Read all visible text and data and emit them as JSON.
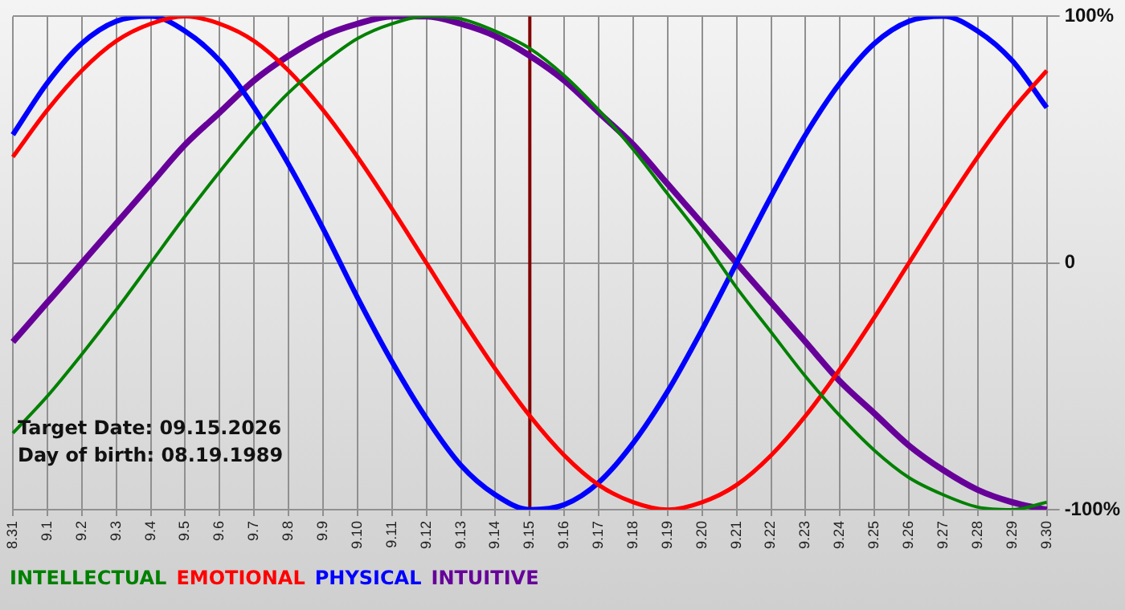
{
  "chart_data": {
    "type": "line",
    "categories": [
      "8.31",
      "9.1",
      "9.2",
      "9.3",
      "9.4",
      "9.5",
      "9.6",
      "9.7",
      "9.8",
      "9.9",
      "9.10",
      "9.11",
      "9.12",
      "9.13",
      "9.14",
      "9.15",
      "9.16",
      "9.17",
      "9.18",
      "9.19",
      "9.20",
      "9.21",
      "9.22",
      "9.23",
      "9.24",
      "9.25",
      "9.26",
      "9.27",
      "9.28",
      "9.29",
      "9.30"
    ],
    "series": [
      {
        "name": "INTELLECTUAL",
        "color": "#008000",
        "values": [
          -69,
          -54,
          -37,
          -19,
          0,
          19,
          37,
          54,
          69,
          81,
          91,
          97,
          100,
          99,
          94,
          87,
          76,
          62,
          46,
          28,
          10,
          -10,
          -28,
          -46,
          -62,
          -76,
          -87,
          -94,
          -99,
          -100,
          -97
        ]
      },
      {
        "name": "EMOTIONAL",
        "color": "#ff0000",
        "values": [
          43,
          62,
          78,
          90,
          97,
          100,
          97,
          90,
          78,
          62,
          43,
          22,
          0,
          -22,
          -43,
          -62,
          -78,
          -90,
          -97,
          -100,
          -97,
          -90,
          -78,
          -62,
          -43,
          -22,
          0,
          22,
          43,
          62,
          78
        ]
      },
      {
        "name": "PHYSICAL",
        "color": "#0000ff",
        "values": [
          52,
          73,
          89,
          98,
          100,
          94,
          82,
          63,
          40,
          14,
          -14,
          -40,
          -63,
          -82,
          -94,
          -100,
          -98,
          -89,
          -73,
          -52,
          -27,
          0,
          27,
          52,
          73,
          89,
          98,
          100,
          94,
          82,
          63
        ]
      },
      {
        "name": "INTUITIVE",
        "color": "#660099",
        "values": [
          -32,
          -16,
          0,
          16,
          32,
          48,
          61,
          74,
          84,
          92,
          97,
          100,
          100,
          97,
          92,
          84,
          74,
          61,
          48,
          32,
          16,
          0,
          -16,
          -32,
          -48,
          -61,
          -74,
          -84,
          -92,
          -97,
          -100
        ]
      }
    ],
    "ylim": [
      -100,
      100
    ],
    "yticks": [
      {
        "value": -100,
        "label": "-100%"
      },
      {
        "value": 0,
        "label": "0"
      },
      {
        "value": 100,
        "label": "100%"
      }
    ],
    "ref_lines": [
      {
        "axis": "x",
        "value": "9.15",
        "color": "#800000"
      }
    ],
    "annotations": [
      "Target Date: 09.15.2026",
      "Day of birth: 08.19.1989"
    ],
    "grid": true,
    "legend": "bottom",
    "marker": "none",
    "line_style": "solid"
  }
}
